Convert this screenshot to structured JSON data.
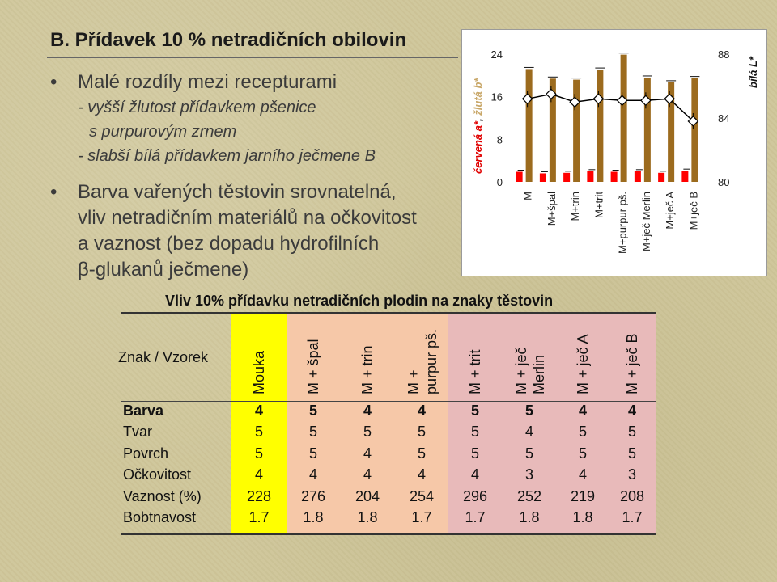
{
  "slide": {
    "title": "B. Přídavek 10 % netradičních obilovin",
    "bullet1": {
      "dot": "•",
      "text": "Malé rozdíly mezi recepturami",
      "sub1": "- vyšší žlutost přídavkem pšenice",
      "sub2": "s purpurovým zrnem",
      "sub3": "- slabší bílá přídavkem jarního ječmene B"
    },
    "bullet2": {
      "dot": "•",
      "line1": "Barva vařených těstovin srovnatelná,",
      "line2": "vliv netradičním materiálů na očkovitost",
      "line3": "a vaznost (bez dopadu hydrofilních",
      "line4": "β-glukanů ječmene)"
    }
  },
  "chart_data": {
    "type": "bar",
    "categories": [
      "M",
      "M+špal",
      "M+trin",
      "M+trit",
      "M+purpur pš.",
      "M+ječ Merlin",
      "M+ječ A",
      "M+ječ B"
    ],
    "left_axis": {
      "title_red": "červená a*",
      "title_sep": ", ",
      "title_yellow": "žlutá b*",
      "ticks": [
        "0",
        "8",
        "16",
        "24"
      ],
      "ylim": [
        0,
        24
      ]
    },
    "right_axis": {
      "title": "bílá L*",
      "ticks": [
        "80",
        "84",
        "88"
      ],
      "ylim": [
        80,
        88
      ]
    },
    "series": [
      {
        "name": "červená a*",
        "kind": "bar",
        "color": "#ff0000",
        "values": [
          1.9,
          1.6,
          1.7,
          2.0,
          1.9,
          2.0,
          1.7,
          2.1
        ]
      },
      {
        "name": "žlutá b*",
        "kind": "bar",
        "color": "#9c6b1e",
        "values": [
          21.2,
          19.4,
          19.2,
          21.1,
          23.9,
          19.6,
          18.7,
          19.5
        ]
      },
      {
        "name": "bílá L*",
        "kind": "line",
        "color": "#000000",
        "values": [
          85.2,
          85.5,
          85.0,
          85.2,
          85.1,
          85.1,
          85.2,
          83.8
        ]
      }
    ]
  },
  "table": {
    "title": "Vliv 10% přídavku netradičních plodin na znaky těstovin",
    "corner": "Znak / Vzorek",
    "columns": [
      {
        "l1": "Mouka",
        "l2": ""
      },
      {
        "l1": "M + špal",
        "l2": ""
      },
      {
        "l1": "M + trin",
        "l2": ""
      },
      {
        "l1": "M +",
        "l2": "purpur pš."
      },
      {
        "l1": "M + trit",
        "l2": ""
      },
      {
        "l1": "M + ječ",
        "l2": "Merlin"
      },
      {
        "l1": "M + ječ A",
        "l2": ""
      },
      {
        "l1": "M + ječ B",
        "l2": ""
      }
    ],
    "rows": [
      {
        "label": "Barva",
        "values": [
          "4",
          "5",
          "4",
          "4",
          "5",
          "5",
          "4",
          "4"
        ]
      },
      {
        "label": "Tvar",
        "values": [
          "5",
          "5",
          "5",
          "5",
          "5",
          "4",
          "5",
          "5"
        ]
      },
      {
        "label": "Povrch",
        "values": [
          "5",
          "5",
          "4",
          "5",
          "5",
          "5",
          "5",
          "5"
        ]
      },
      {
        "label": "Očkovitost",
        "values": [
          "4",
          "4",
          "4",
          "4",
          "4",
          "3",
          "4",
          "3"
        ]
      },
      {
        "label": "Vaznost (%)",
        "values": [
          "228",
          "276",
          "204",
          "254",
          "296",
          "252",
          "219",
          "208"
        ]
      },
      {
        "label": "Bobtnavost",
        "values": [
          "1.7",
          "1.8",
          "1.8",
          "1.7",
          "1.7",
          "1.8",
          "1.8",
          "1.7"
        ]
      }
    ]
  }
}
